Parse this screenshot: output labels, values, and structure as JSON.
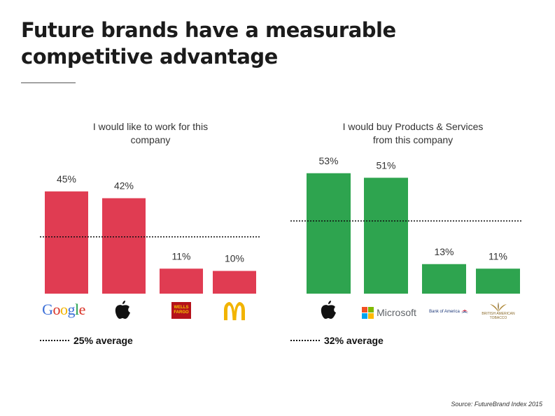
{
  "page": {
    "title_line1": "Future brands have a measurable",
    "title_line2": "competitive advantage",
    "source": "Source: FutureBrand Index 2015"
  },
  "colors": {
    "left_bars": "#e03c52",
    "right_bars": "#2ea44f",
    "avg_line": "#111111"
  },
  "chart_data": [
    {
      "type": "bar",
      "title": "I would like to work for this company",
      "title_lines": [
        "I would like to work for this",
        "company"
      ],
      "categories": [
        "Google",
        "Apple",
        "Wells Fargo",
        "McDonald's"
      ],
      "values": [
        45,
        42,
        11,
        10
      ],
      "value_labels": [
        "45%",
        "42%",
        "11%",
        "10%"
      ],
      "average": 25,
      "average_label": "25% average",
      "ylim": [
        0,
        60
      ],
      "grid": false
    },
    {
      "type": "bar",
      "title": "I would buy Products & Services from this company",
      "title_lines": [
        "I would buy Products & Services",
        "from this company"
      ],
      "categories": [
        "Apple",
        "Microsoft",
        "Bank of America",
        "British American Tobacco"
      ],
      "values": [
        53,
        51,
        13,
        11
      ],
      "value_labels": [
        "53%",
        "51%",
        "13%",
        "11%"
      ],
      "average": 32,
      "average_label": "32% average",
      "ylim": [
        0,
        60
      ],
      "grid": false
    }
  ],
  "logos": {
    "google": "Google",
    "wells_fargo_line1": "WELLS",
    "wells_fargo_line2": "FARGO",
    "microsoft": "Microsoft",
    "bank_of_america": "Bank of America",
    "bat_line1": "BRITISH AMERICAN",
    "bat_line2": "TOBACCO",
    "apple_icon": "apple-icon",
    "mcdonalds_icon": "mcdonalds-arches-icon"
  }
}
